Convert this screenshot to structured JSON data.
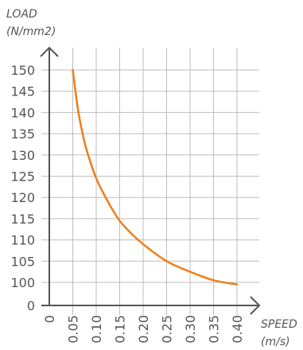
{
  "chart_data": {
    "type": "line",
    "ylabel_line1": "LOAD",
    "ylabel_line2": "(N/mm2)",
    "xlabel_line1": "SPEED",
    "xlabel_line2": "(m/s)",
    "x_ticks": [
      "0",
      "0.05",
      "0.10",
      "0.15",
      "0.20",
      "0.25",
      "0.30",
      "0.35",
      "0.40"
    ],
    "y_ticks": [
      "0",
      "100",
      "105",
      "110",
      "115",
      "120",
      "125",
      "130",
      "135",
      "140",
      "145",
      "150"
    ],
    "series": [
      {
        "color": "#f07d1a",
        "x": [
          0.05,
          0.06,
          0.07,
          0.08,
          0.1,
          0.125,
          0.15,
          0.175,
          0.2,
          0.25,
          0.3,
          0.35,
          0.4
        ],
        "y": [
          150,
          141.5,
          135.5,
          131,
          124.5,
          119,
          114.5,
          111.5,
          109,
          105,
          102.5,
          100.5,
          99.5
        ]
      }
    ],
    "grid": true
  }
}
